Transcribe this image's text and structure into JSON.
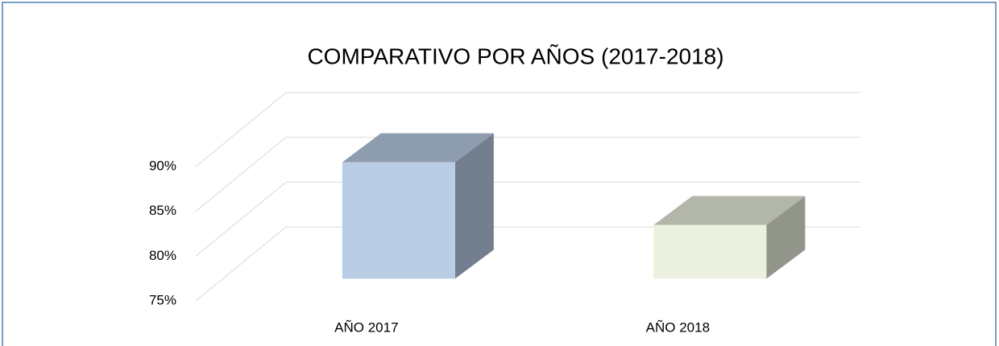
{
  "chart_data": {
    "type": "bar3d",
    "title": "COMPARATIVO POR AÑOS (2017-2018)",
    "categories": [
      "AÑO 2017",
      "AÑO 2018"
    ],
    "values": [
      88,
      81
    ],
    "colors": [
      "#b9cde5",
      "#ebf1de"
    ],
    "ylim": [
      75,
      90
    ],
    "yticks": [
      {
        "value": 75,
        "label": "75%"
      },
      {
        "value": 80,
        "label": "80%"
      },
      {
        "value": 85,
        "label": "85%"
      },
      {
        "value": 90,
        "label": "90%"
      }
    ],
    "grid": true
  }
}
